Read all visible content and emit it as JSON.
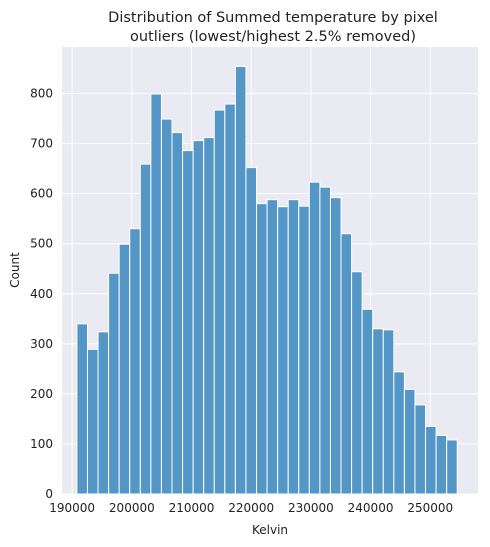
{
  "chart_data": {
    "type": "bar",
    "title_line1": "Distribution of Summed temperature by pixel",
    "title_line2": "outliers (lowest/highest 2.5% removed)",
    "xlabel": "Kelvin",
    "ylabel": "Count",
    "xlim": [
      188300,
      258000
    ],
    "ylim": [
      0,
      893
    ],
    "x_ticks": [
      190000,
      200000,
      210000,
      220000,
      230000,
      240000,
      250000
    ],
    "y_ticks": [
      0,
      100,
      200,
      300,
      400,
      500,
      600,
      700,
      800
    ],
    "bin_start": 190800,
    "bin_width": 1770,
    "values": [
      340,
      289,
      324,
      441,
      499,
      530,
      659,
      799,
      749,
      722,
      686,
      706,
      712,
      767,
      779,
      854,
      652,
      580,
      588,
      574,
      588,
      575,
      623,
      613,
      592,
      520,
      444,
      369,
      330,
      328,
      244,
      209,
      178,
      135,
      117,
      108
    ],
    "bar_color": "#5497c6",
    "bar_edge_color": "#ffffff",
    "plot_background": "#eaeaf2",
    "grid_color": "#ffffff",
    "grid": true
  }
}
